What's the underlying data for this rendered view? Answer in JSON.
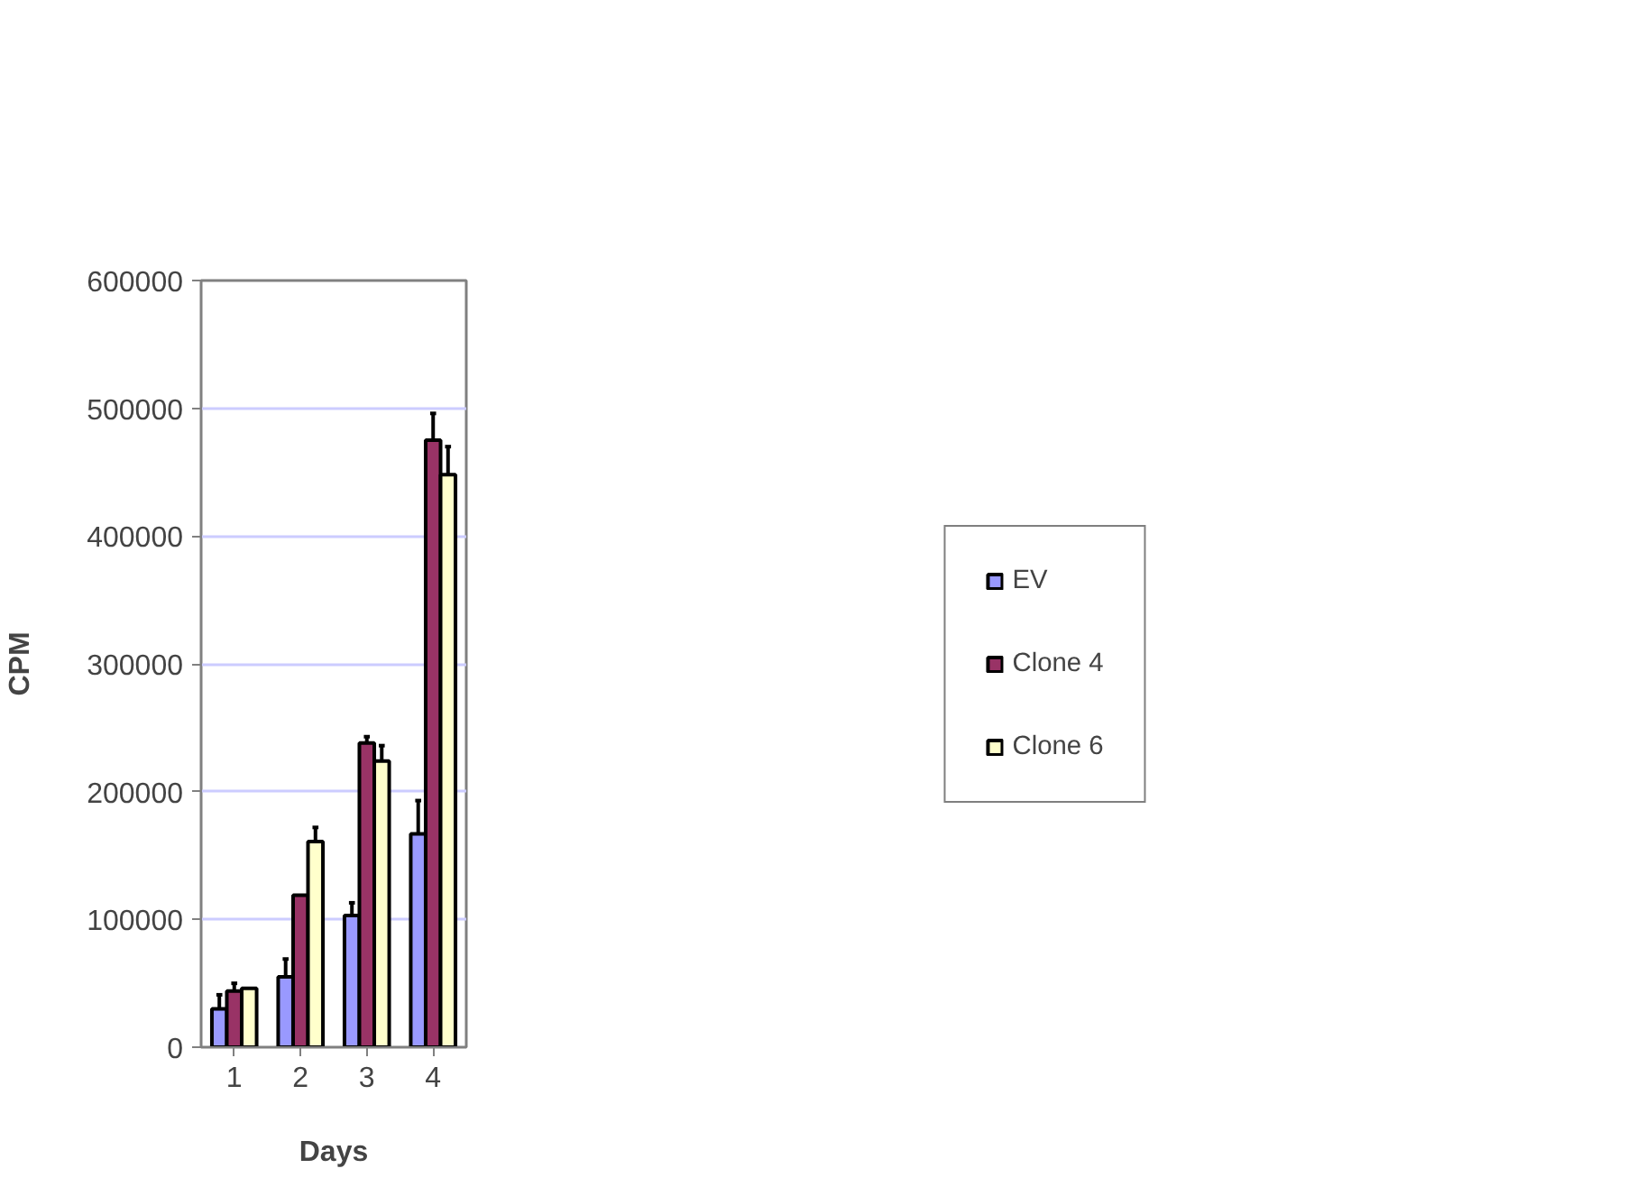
{
  "chart_data": {
    "type": "bar",
    "xlabel": "Days",
    "ylabel": "CPM",
    "categories": [
      "1",
      "2",
      "3",
      "4"
    ],
    "series": [
      {
        "name": "EV",
        "color": "#9999ff",
        "values": [
          30000,
          55000,
          103000,
          167000
        ],
        "errors": [
          [
            30000,
            41000
          ],
          [
            55000,
            69000
          ],
          [
            103000,
            113000
          ],
          [
            167000,
            193000
          ]
        ]
      },
      {
        "name": "Clone 4",
        "color": "#993366",
        "values": [
          44000,
          119000,
          238000,
          475000
        ],
        "errors": [
          [
            44000,
            50000
          ],
          null,
          [
            238000,
            243000
          ],
          [
            475000,
            496000
          ]
        ]
      },
      {
        "name": "Clone 6",
        "color": "#ffffcc",
        "values": [
          46000,
          161000,
          224000,
          448000
        ],
        "errors": [
          null,
          [
            161000,
            172000
          ],
          [
            224000,
            236000
          ],
          [
            448000,
            470000
          ]
        ]
      }
    ],
    "ylim": [
      0,
      600000
    ],
    "yticks": [
      0,
      100000,
      200000,
      300000,
      400000,
      500000,
      600000
    ],
    "grid": "y",
    "legend": "right"
  }
}
